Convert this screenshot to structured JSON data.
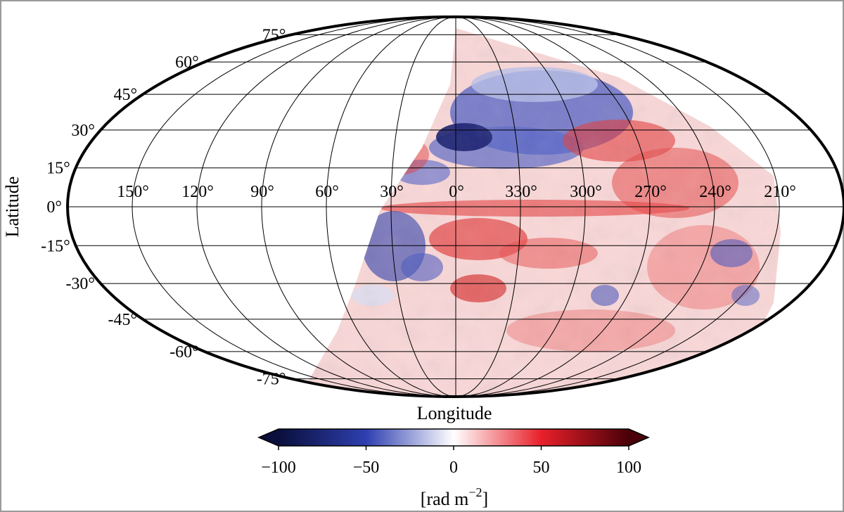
{
  "chart_data": {
    "type": "heatmap",
    "projection": "mollweide",
    "xlabel": "Longitude",
    "ylabel": "Latitude",
    "grid": true,
    "lon_ticks": [
      {
        "value": 150,
        "label": "150°"
      },
      {
        "value": 120,
        "label": "120°"
      },
      {
        "value": 90,
        "label": "90°"
      },
      {
        "value": 60,
        "label": "60°"
      },
      {
        "value": 30,
        "label": "30°"
      },
      {
        "value": 0,
        "label": "0°"
      },
      {
        "value": 330,
        "label": "330°"
      },
      {
        "value": 300,
        "label": "300°"
      },
      {
        "value": 270,
        "label": "270°"
      },
      {
        "value": 240,
        "label": "240°"
      },
      {
        "value": 210,
        "label": "210°"
      }
    ],
    "lat_ticks": [
      {
        "value": 75,
        "label": "75°"
      },
      {
        "value": 60,
        "label": "60°"
      },
      {
        "value": 45,
        "label": "45°"
      },
      {
        "value": 30,
        "label": "30°"
      },
      {
        "value": 15,
        "label": "15°"
      },
      {
        "value": 0,
        "label": "0°"
      },
      {
        "value": -15,
        "label": "-15°"
      },
      {
        "value": -30,
        "label": "-30°"
      },
      {
        "value": -45,
        "label": "-45°"
      },
      {
        "value": -60,
        "label": "-60°"
      },
      {
        "value": -75,
        "label": "-75°"
      }
    ],
    "coverage_note_lat_min": -90,
    "colorbar": {
      "label": "[rad m",
      "label_exponent": "−2",
      "label_close": "]",
      "range": [
        -100,
        100
      ],
      "extend": "both",
      "colors": [
        "#0a0f3c",
        "#2e3fb0",
        "#ffffff",
        "#e8202a",
        "#4a0008"
      ],
      "ticks": [
        {
          "value": -100,
          "label": "−100"
        },
        {
          "value": -50,
          "label": "−50"
        },
        {
          "value": 0,
          "label": "0"
        },
        {
          "value": 50,
          "label": "50"
        },
        {
          "value": 100,
          "label": "100"
        }
      ]
    }
  }
}
